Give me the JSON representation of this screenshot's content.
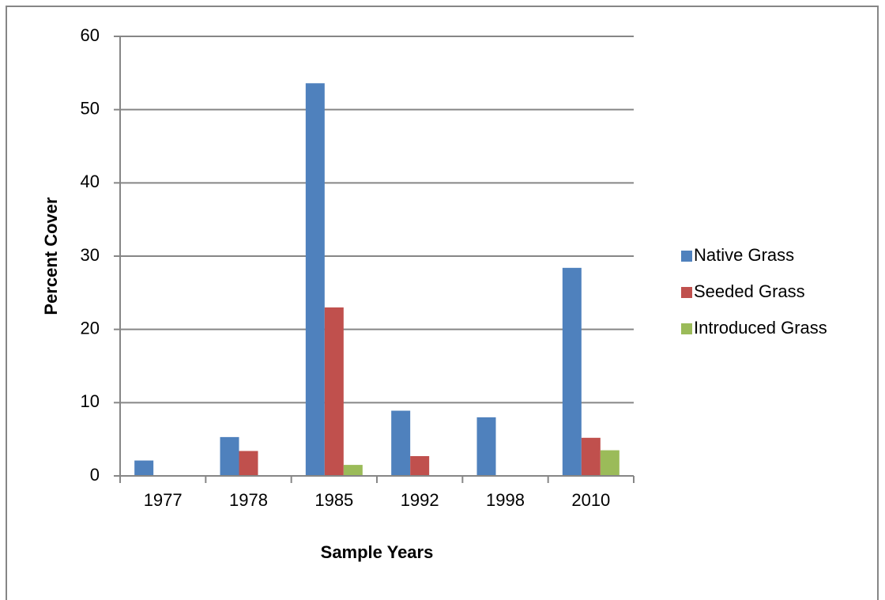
{
  "chart_data": {
    "type": "bar",
    "x_label": "Sample Years",
    "y_label": "Percent Cover",
    "categories": [
      "1977",
      "1978",
      "1985",
      "1992",
      "1998",
      "2010"
    ],
    "series": [
      {
        "name": "Native Grass",
        "color": "#4f81bd",
        "values": [
          2.1,
          5.3,
          53.6,
          8.9,
          8.0,
          28.4
        ]
      },
      {
        "name": "Seeded Grass",
        "color": "#c0504d",
        "values": [
          0,
          3.4,
          23.0,
          2.7,
          0,
          5.2
        ]
      },
      {
        "name": "Introduced Grass",
        "color": "#9bbb59",
        "values": [
          0,
          0,
          1.5,
          0,
          0,
          3.5
        ]
      }
    ],
    "ylim": [
      0,
      60
    ],
    "yticks": [
      0,
      10,
      20,
      30,
      40,
      50,
      60
    ],
    "grid": true,
    "legend": "right"
  }
}
